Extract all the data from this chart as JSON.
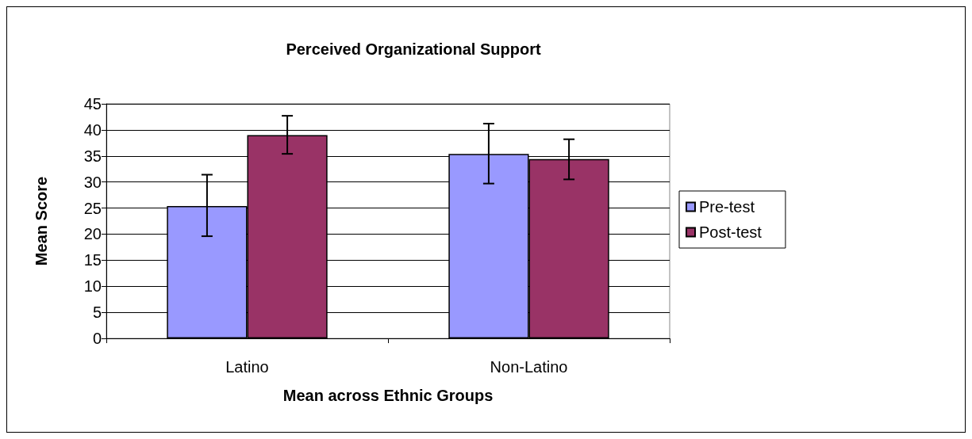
{
  "chart_data": {
    "type": "bar",
    "title": "Perceived Organizational Support",
    "xlabel": "Mean across Ethnic Groups",
    "ylabel": "Mean Score",
    "categories": [
      "Latino",
      "Non-Latino"
    ],
    "series": [
      {
        "name": "Pre-test",
        "color": "#9999ff",
        "values": [
          25.4,
          35.4
        ],
        "errors": [
          [
            19.6,
            31.4
          ],
          [
            29.7,
            41.2
          ]
        ]
      },
      {
        "name": "Post-test",
        "color": "#993366",
        "values": [
          39.0,
          34.4
        ],
        "errors": [
          [
            35.4,
            42.7
          ],
          [
            30.5,
            38.2
          ]
        ]
      }
    ],
    "ylim": [
      0,
      45
    ],
    "yticks": [
      0,
      5,
      10,
      15,
      20,
      25,
      30,
      35,
      40,
      45
    ],
    "grid": "y",
    "legend": "right"
  }
}
